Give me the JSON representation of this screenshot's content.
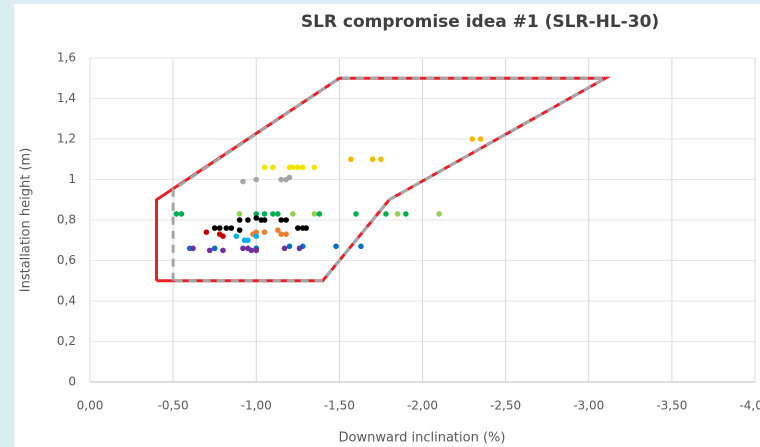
{
  "chart_data": {
    "type": "scatter",
    "title": "SLR compromise idea #1 (SLR-HL-30)",
    "x_label": "Downward inclination (%)",
    "y_label": "Installation height (m)",
    "xlim": [
      0,
      -4
    ],
    "ylim": [
      0,
      1.6
    ],
    "xticks": [
      {
        "value": 0,
        "label": "0,00"
      },
      {
        "value": -0.5,
        "label": "-0,50"
      },
      {
        "value": -1,
        "label": "-1,00"
      },
      {
        "value": -1.5,
        "label": "-1,50"
      },
      {
        "value": -2,
        "label": "-2,00"
      },
      {
        "value": -2.5,
        "label": "-2,50"
      },
      {
        "value": -3,
        "label": "-3,00"
      },
      {
        "value": -3.5,
        "label": "-3,50"
      },
      {
        "value": -4,
        "label": "-4,00"
      }
    ],
    "yticks": [
      0,
      {
        "value": 0.2,
        "label": "0,2"
      },
      {
        "value": 0.4,
        "label": "0,4"
      },
      {
        "value": 0.6,
        "label": "0,6"
      },
      {
        "value": 0.8,
        "label": "0,8"
      },
      1,
      {
        "value": 1.2,
        "label": "1,2"
      },
      {
        "value": 1.4,
        "label": "1,4"
      },
      {
        "value": 1.6,
        "label": "1,6"
      }
    ],
    "grid": true,
    "series": [
      {
        "mode": "line",
        "color": "#e8202a",
        "dash": false,
        "x": [
          -0.4,
          -0.4,
          -1.5,
          -3.1,
          -1.8,
          -1.4,
          -0.4
        ],
        "values": [
          0.5,
          0.9,
          1.5,
          1.5,
          0.9,
          0.5,
          0.5
        ]
      },
      {
        "mode": "line",
        "color": "#a6a6a6",
        "dash": true,
        "x": [
          -0.5,
          -0.5,
          -1.5,
          -3.1,
          -1.8,
          -1.4,
          -0.5
        ],
        "values": [
          0.5,
          0.95,
          1.5,
          1.5,
          0.9,
          0.5,
          0.5
        ]
      },
      {
        "mode": "points",
        "color": "#f2e600",
        "x": [
          -1.05,
          -1.1,
          -1.2,
          -1.22,
          -1.25,
          -1.28,
          -1.35
        ],
        "values": [
          1.06,
          1.06,
          1.06,
          1.06,
          1.06,
          1.06,
          1.06
        ]
      },
      {
        "mode": "points",
        "color": "#f5b800",
        "x": [
          -1.57,
          -1.7,
          -1.75,
          -2.3,
          -2.35
        ],
        "values": [
          1.1,
          1.1,
          1.1,
          1.2,
          1.2
        ]
      },
      {
        "mode": "points",
        "color": "#a6a6a6",
        "x": [
          -0.92,
          -1.0,
          -1.15,
          -1.18,
          -1.2
        ],
        "values": [
          0.99,
          1.0,
          1.0,
          1.0,
          1.01
        ]
      },
      {
        "mode": "points",
        "color": "#92d050",
        "x": [
          -0.9,
          -1.22,
          -1.35,
          -1.85,
          -2.1
        ],
        "values": [
          0.83,
          0.83,
          0.83,
          0.83,
          0.83
        ]
      },
      {
        "mode": "points",
        "color": "#00b050",
        "x": [
          -0.52,
          -0.55,
          -1.0,
          -1.05,
          -1.1,
          -1.13,
          -1.38,
          -1.6,
          -1.78,
          -1.9
        ],
        "values": [
          0.83,
          0.83,
          0.83,
          0.83,
          0.83,
          0.83,
          0.83,
          0.83,
          0.83,
          0.83
        ]
      },
      {
        "mode": "points",
        "color": "#000000",
        "x": [
          -0.9,
          -0.95,
          -1.0,
          -1.03,
          -1.05,
          -1.15,
          -1.18,
          -0.75,
          -0.78,
          -0.82,
          -0.85,
          -0.9,
          -1.25,
          -1.28,
          -1.3
        ],
        "values": [
          0.8,
          0.8,
          0.81,
          0.8,
          0.8,
          0.8,
          0.8,
          0.76,
          0.76,
          0.76,
          0.76,
          0.75,
          0.76,
          0.76,
          0.76
        ]
      },
      {
        "mode": "points",
        "color": "#c00000",
        "x": [
          -0.7,
          -0.78,
          -0.8
        ],
        "values": [
          0.74,
          0.73,
          0.72
        ]
      },
      {
        "mode": "points",
        "color": "#ed7d31",
        "x": [
          -0.98,
          -1.0,
          -1.05,
          -1.13,
          -1.15,
          -1.18
        ],
        "values": [
          0.73,
          0.74,
          0.74,
          0.75,
          0.73,
          0.73
        ]
      },
      {
        "mode": "points",
        "color": "#00b0f0",
        "x": [
          -0.88,
          -0.93,
          -0.95,
          -1.0
        ],
        "values": [
          0.72,
          0.7,
          0.7,
          0.72
        ]
      },
      {
        "mode": "points",
        "color": "#0070c0",
        "x": [
          -0.6,
          -0.75,
          -1.0,
          -1.2,
          -1.28,
          -1.48,
          -1.63
        ],
        "values": [
          0.66,
          0.66,
          0.66,
          0.67,
          0.67,
          0.67,
          0.67
        ]
      },
      {
        "mode": "points",
        "color": "#7030a0",
        "x": [
          -0.62,
          -0.72,
          -0.8,
          -0.92,
          -0.95,
          -0.97,
          -1.0,
          -1.17,
          -1.26
        ],
        "values": [
          0.66,
          0.65,
          0.65,
          0.66,
          0.66,
          0.65,
          0.65,
          0.66,
          0.66
        ]
      }
    ]
  }
}
